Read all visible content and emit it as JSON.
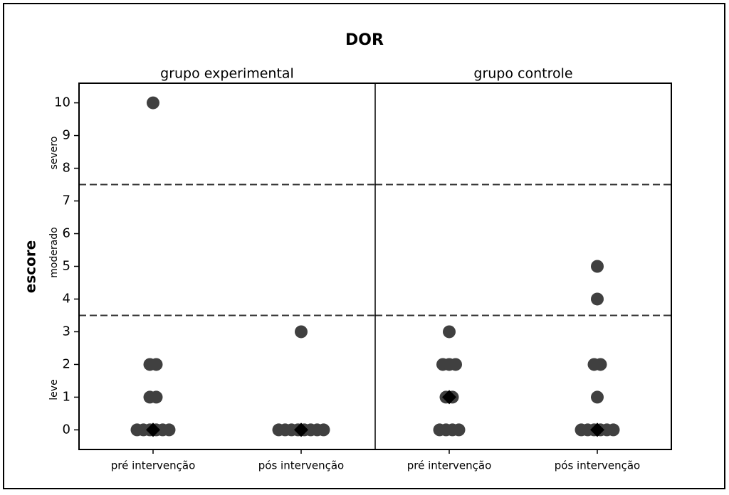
{
  "chart_data": {
    "type": "dot",
    "title": "DOR",
    "y_label": "escore",
    "zone_labels": [
      "leve",
      "moderado",
      "severo"
    ],
    "ylim": [
      -0.6,
      10.6
    ],
    "yticks": [
      0,
      1,
      2,
      3,
      4,
      5,
      6,
      7,
      8,
      9,
      10
    ],
    "reference_lines": [
      3.5,
      7.5
    ],
    "color": "#404040",
    "median_color": "#000000",
    "panels": [
      {
        "title": "grupo experimental",
        "groups": [
          {
            "category": "pré intervenção",
            "values": [
              10,
              2,
              2,
              1,
              1,
              0,
              0,
              0,
              0,
              0,
              0
            ],
            "median": 0
          },
          {
            "category": "pós intervenção",
            "values": [
              3,
              0,
              0,
              0,
              0,
              0,
              0,
              0,
              0
            ],
            "median": 0
          }
        ]
      },
      {
        "title": "grupo controle",
        "groups": [
          {
            "category": "pré intervenção",
            "values": [
              3,
              2,
              2,
              2,
              1,
              1,
              0,
              0,
              0,
              0
            ],
            "median": 1
          },
          {
            "category": "pós intervenção",
            "values": [
              5,
              4,
              2,
              2,
              1,
              0,
              0,
              0,
              0,
              0,
              0
            ],
            "median": 0
          }
        ]
      }
    ]
  }
}
